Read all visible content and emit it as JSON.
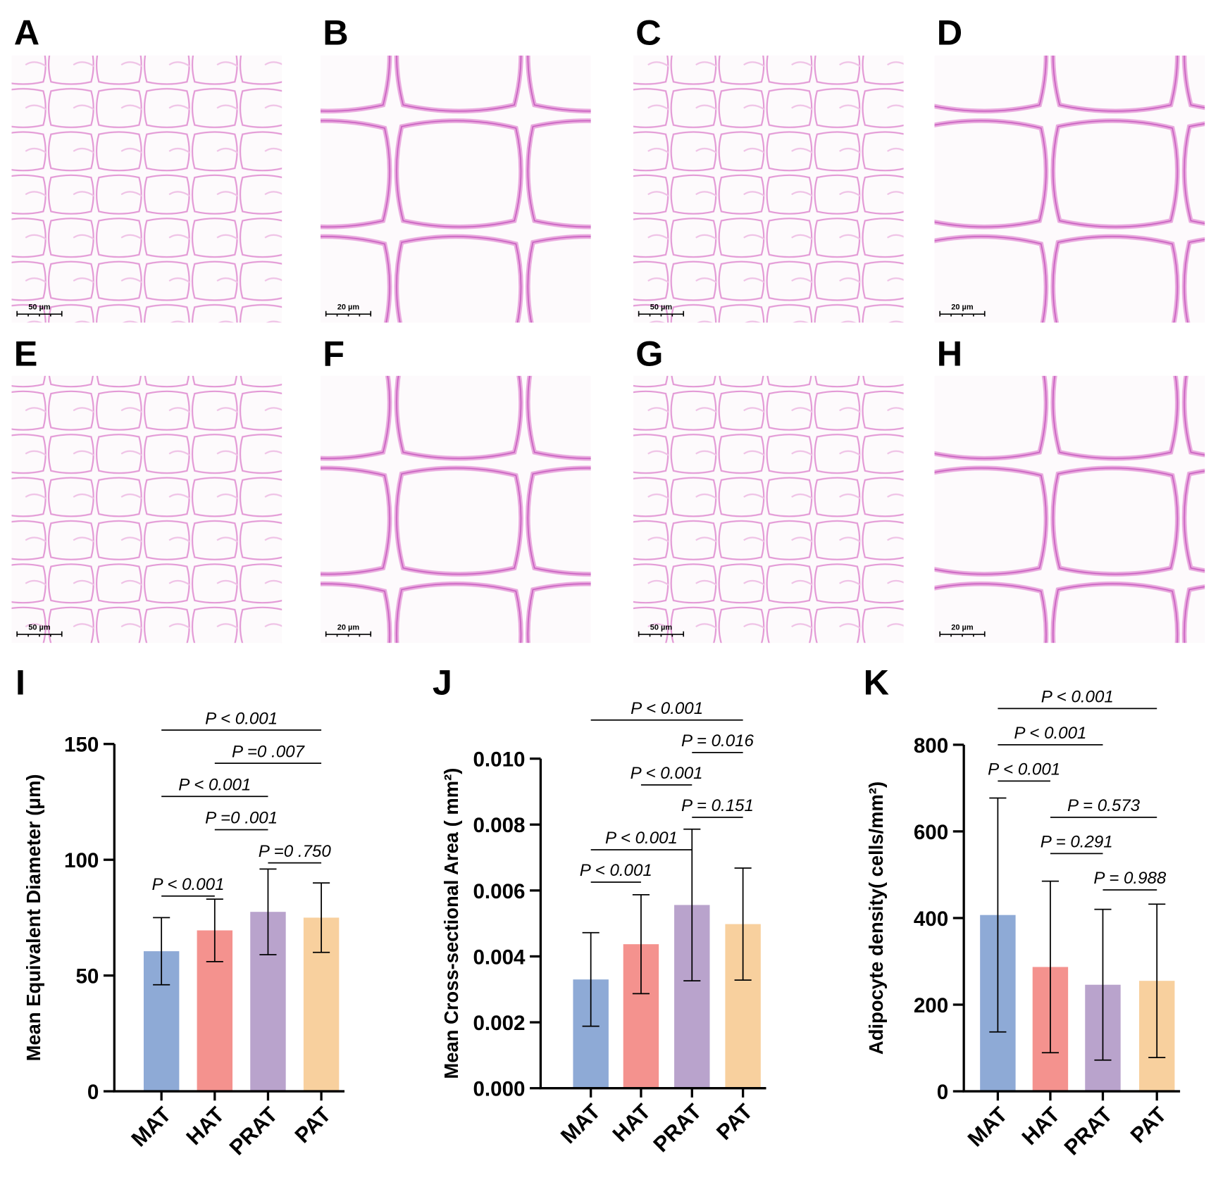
{
  "panels": [
    {
      "label": "A",
      "scale_bar": "50 µm"
    },
    {
      "label": "B",
      "scale_bar": "20 µm"
    },
    {
      "label": "C",
      "scale_bar": "50 µm"
    },
    {
      "label": "D",
      "scale_bar": "20 µm"
    },
    {
      "label": "E",
      "scale_bar": "50 µm"
    },
    {
      "label": "F",
      "scale_bar": "20 µm"
    },
    {
      "label": "G",
      "scale_bar": "50 µm"
    },
    {
      "label": "H",
      "scale_bar": "20 µm"
    }
  ],
  "chart_data": [
    {
      "type": "bar",
      "panel_label": "I",
      "ylabel": "Mean Equivalent Diameter (μm)",
      "categories": [
        "MAT",
        "HAT",
        "PRAT",
        "PAT"
      ],
      "values": [
        60.5,
        69.5,
        77.5,
        75
      ],
      "errors": [
        14.5,
        13.5,
        18.5,
        15
      ],
      "colors": [
        "#8eaad6",
        "#f4928e",
        "#b9a3cc",
        "#f8d09e"
      ],
      "ylim": [
        0,
        150
      ],
      "yticks": [
        0,
        50,
        100,
        150
      ],
      "comparisons": [
        {
          "pair": [
            "MAT",
            "PAT"
          ],
          "label": "P < 0.001"
        },
        {
          "pair": [
            "HAT",
            "PAT"
          ],
          "label": "P =0 .007"
        },
        {
          "pair": [
            "MAT",
            "PRAT"
          ],
          "label": "P < 0.001"
        },
        {
          "pair": [
            "HAT",
            "PRAT"
          ],
          "label": "P =0 .001"
        },
        {
          "pair": [
            "PRAT",
            "PAT"
          ],
          "label": "P =0 .750"
        },
        {
          "pair": [
            "MAT",
            "HAT"
          ],
          "label": "P < 0.001"
        }
      ]
    },
    {
      "type": "bar",
      "panel_label": "J",
      "ylabel": "Mean Cross-sectional Area ( mm²)",
      "categories": [
        "MAT",
        "HAT",
        "PRAT",
        "PAT"
      ],
      "values": [
        0.0033,
        0.00437,
        0.00556,
        0.00498
      ],
      "errors": [
        0.00142,
        0.0015,
        0.0023,
        0.0017
      ],
      "colors": [
        "#8eaad6",
        "#f4928e",
        "#b9a3cc",
        "#f8d09e"
      ],
      "ylim": [
        0,
        0.01
      ],
      "yticks": [
        {
          "value": 0,
          "label": "0.000"
        },
        {
          "value": 0.002,
          "label": "0.002"
        },
        {
          "value": 0.004,
          "label": "0.004"
        },
        {
          "value": 0.006,
          "label": "0.006"
        },
        {
          "value": 0.008,
          "label": "0.008"
        },
        {
          "value": 0.01,
          "label": "0.010"
        }
      ],
      "comparisons": [
        {
          "pair": [
            "MAT",
            "PAT"
          ],
          "label": "P < 0.001"
        },
        {
          "pair": [
            "PRAT",
            "PAT"
          ],
          "label": "P = 0.016"
        },
        {
          "pair": [
            "HAT",
            "PRAT"
          ],
          "label": "P < 0.001"
        },
        {
          "pair": [
            "PRAT",
            "PAT"
          ],
          "label": "P = 0.151"
        },
        {
          "pair": [
            "MAT",
            "PRAT"
          ],
          "label": "P < 0.001"
        },
        {
          "pair": [
            "MAT",
            "HAT"
          ],
          "label": "P < 0.001"
        }
      ]
    },
    {
      "type": "bar",
      "panel_label": "K",
      "ylabel": "Adipocyte density( cells/mm²)",
      "categories": [
        "MAT",
        "HAT",
        "PRAT",
        "PAT"
      ],
      "values": [
        407,
        287,
        246,
        255
      ],
      "errors": [
        270,
        198,
        174,
        177
      ],
      "colors": [
        "#8eaad6",
        "#f4928e",
        "#b9a3cc",
        "#f8d09e"
      ],
      "ylim": [
        0,
        800
      ],
      "yticks": [
        0,
        200,
        400,
        600,
        800
      ],
      "comparisons": [
        {
          "pair": [
            "MAT",
            "PAT"
          ],
          "label": "P < 0.001"
        },
        {
          "pair": [
            "MAT",
            "PRAT"
          ],
          "label": "P < 0.001"
        },
        {
          "pair": [
            "MAT",
            "HAT"
          ],
          "label": "P < 0.001"
        },
        {
          "pair": [
            "HAT",
            "PAT"
          ],
          "label": "P =  0.573"
        },
        {
          "pair": [
            "HAT",
            "PRAT"
          ],
          "label": "P =  0.291"
        },
        {
          "pair": [
            "PRAT",
            "PAT"
          ],
          "label": "P =  0.988"
        }
      ]
    }
  ]
}
